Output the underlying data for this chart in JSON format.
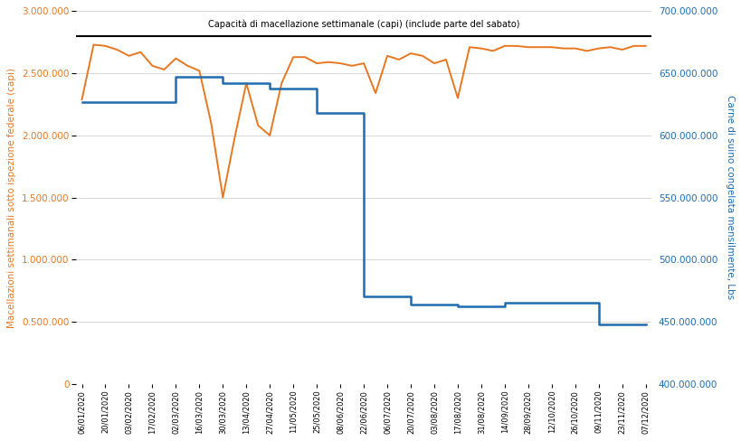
{
  "title_annotation": "Capacità di macellazione settimanale (capi) (include parte del sabato)",
  "ylabel_left": "Macellazioni settimanali sotto ispezione federale (capi)",
  "ylabel_right": "Carne di suino congelata mensilmente, Lbs",
  "left_color": "#E87722",
  "right_color": "#1F6CB0",
  "capacity_line_value": 2800000,
  "ylim_left": [
    0,
    3000000
  ],
  "ylim_right": [
    400000000,
    700000000
  ],
  "slaughter_x": [
    0,
    1,
    2,
    3,
    4,
    5,
    6,
    7,
    8,
    9,
    10,
    11,
    12,
    13,
    14,
    15,
    16,
    17,
    18,
    19,
    20,
    21,
    22,
    23,
    24,
    25,
    26,
    27,
    28,
    29,
    30,
    31,
    32,
    33,
    34,
    35,
    36,
    37,
    38,
    39,
    40,
    41,
    42,
    43,
    44,
    45,
    46,
    47,
    48
  ],
  "slaughter_vals": [
    2290000,
    2730000,
    2720000,
    2690000,
    2640000,
    2670000,
    2560000,
    2530000,
    2620000,
    2560000,
    2520000,
    2100000,
    1500000,
    1980000,
    2420000,
    2080000,
    2000000,
    2420000,
    2630000,
    2630000,
    2580000,
    2590000,
    2580000,
    2560000,
    2580000,
    2340000,
    2640000,
    2610000,
    2660000,
    2640000,
    2580000,
    2610000,
    2300000,
    2710000,
    2700000,
    2680000,
    2720000,
    2720000,
    2710000,
    2710000,
    2710000,
    2700000,
    2700000,
    2680000,
    2700000,
    2710000,
    2690000,
    2720000,
    2720000
  ],
  "storage_x": [
    0,
    4,
    8,
    12,
    16,
    20,
    24,
    28,
    32,
    36,
    40,
    44,
    48
  ],
  "storage_vals": [
    627000000,
    627000000,
    647000000,
    642000000,
    638000000,
    618000000,
    470000000,
    464000000,
    462000000,
    465000000,
    465000000,
    448000000,
    448000000
  ],
  "xtick_labels": [
    "06/01/2020",
    "20/01/2020",
    "03/02/2020",
    "17/02/2020",
    "02/03/2020",
    "16/03/2020",
    "30/03/2020",
    "13/04/2020",
    "27/04/2020",
    "11/05/2020",
    "25/05/2020",
    "08/06/2020",
    "22/06/2020",
    "06/07/2020",
    "20/07/2020",
    "03/08/2020",
    "17/08/2020",
    "31/08/2020",
    "14/09/2020",
    "28/09/2020",
    "12/10/2020",
    "26/10/2020",
    "09/11/2020",
    "23/11/2020",
    "07/12/2020"
  ],
  "left_yticks": [
    0,
    500000,
    1000000,
    1500000,
    2000000,
    2500000,
    3000000
  ],
  "right_yticks": [
    400000000,
    450000000,
    500000000,
    550000000,
    600000000,
    650000000,
    700000000
  ]
}
